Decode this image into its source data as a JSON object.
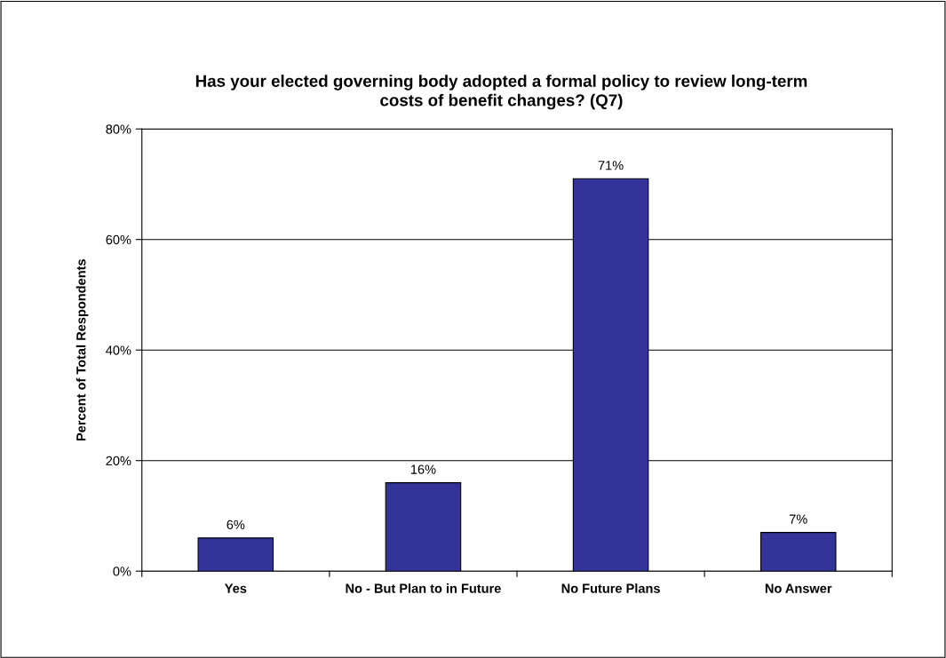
{
  "chart_data": {
    "type": "bar",
    "title": "Has your elected governing body adopted a formal policy to review long-term\ncosts of benefit changes? (Q7)",
    "ylabel": "Percent of Total Respondents",
    "categories": [
      "Yes",
      "No - But Plan to in Future",
      "No Future Plans",
      "No Answer"
    ],
    "values": [
      6,
      16,
      71,
      7
    ],
    "color": "#333399",
    "ylim": [
      0,
      80
    ],
    "yticks": [
      {
        "value": 0,
        "label": "0%"
      },
      {
        "value": 20,
        "label": "20%"
      },
      {
        "value": 40,
        "label": "40%"
      },
      {
        "value": 60,
        "label": "60%"
      },
      {
        "value": 80,
        "label": "80%"
      }
    ],
    "value_labels": [
      "6%",
      "16%",
      "71%",
      "7%"
    ],
    "grid": "y",
    "legend": false
  }
}
